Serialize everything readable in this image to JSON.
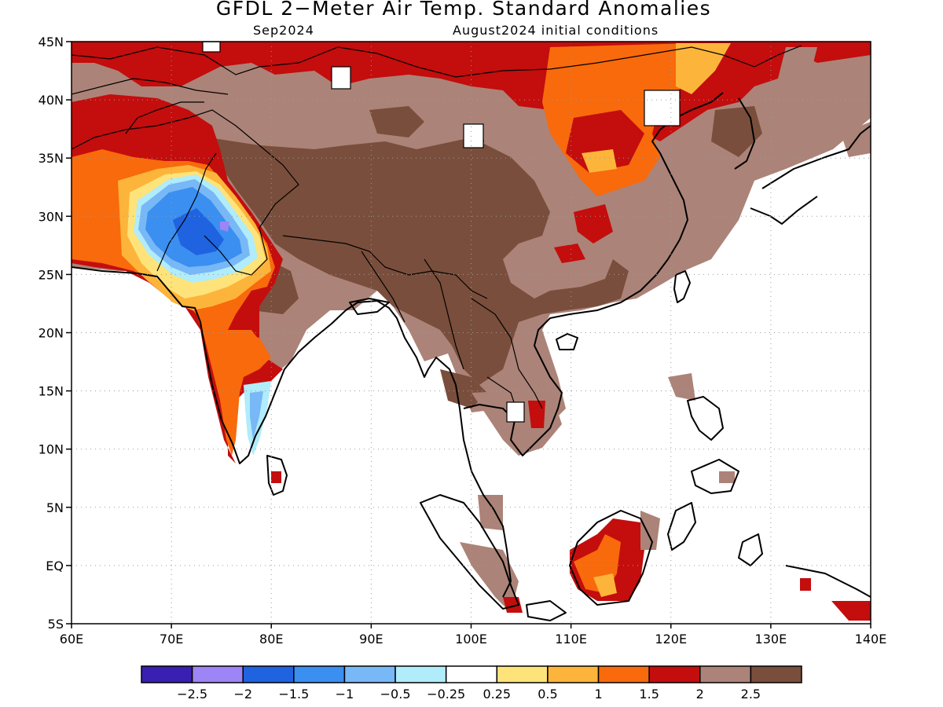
{
  "header": {
    "title": "GFDL 2−Meter Air Temp. Standard Anomalies",
    "valid_month": "Sep2024",
    "init_conditions": "August2024 initial conditions"
  },
  "axes": {
    "lat_labels": [
      "45N",
      "40N",
      "35N",
      "30N",
      "25N",
      "20N",
      "15N",
      "10N",
      "5N",
      "EQ",
      "5S"
    ],
    "lon_labels": [
      "60E",
      "70E",
      "80E",
      "90E",
      "100E",
      "110E",
      "120E",
      "130E",
      "140E"
    ],
    "lat_range": [
      -5,
      45
    ],
    "lon_range": [
      60,
      140
    ],
    "grid": true
  },
  "legend": {
    "tick_labels": [
      "−2.5",
      "−2",
      "−1.5",
      "−1",
      "−0.5",
      "−0.25",
      "0.25",
      "0.5",
      "1",
      "1.5",
      "2",
      "2.5"
    ],
    "colors": [
      "#3a1fb3",
      "#9d85f5",
      "#1f63e0",
      "#3a8ff0",
      "#78b8f7",
      "#b0ecfa",
      "#ffffff",
      "#fde37a",
      "#fdb43a",
      "#f86a0c",
      "#c40d0d",
      "#ac8378",
      "#7a4e3c"
    ]
  },
  "palette": {
    "land": "#ffffff",
    "coast": "#000000",
    "dark_brown": "#7a4e3c",
    "light_brown": "#ac8378",
    "red": "#c40d0d",
    "orange_red": "#f86a0c",
    "orange": "#fdb43a",
    "yellow": "#fde37a",
    "light_blue": "#b0ecfa",
    "mid_blue": "#78b8f7",
    "blue": "#3a8ff0",
    "deep_blue": "#1f63e0",
    "lavender": "#9d85f5"
  }
}
